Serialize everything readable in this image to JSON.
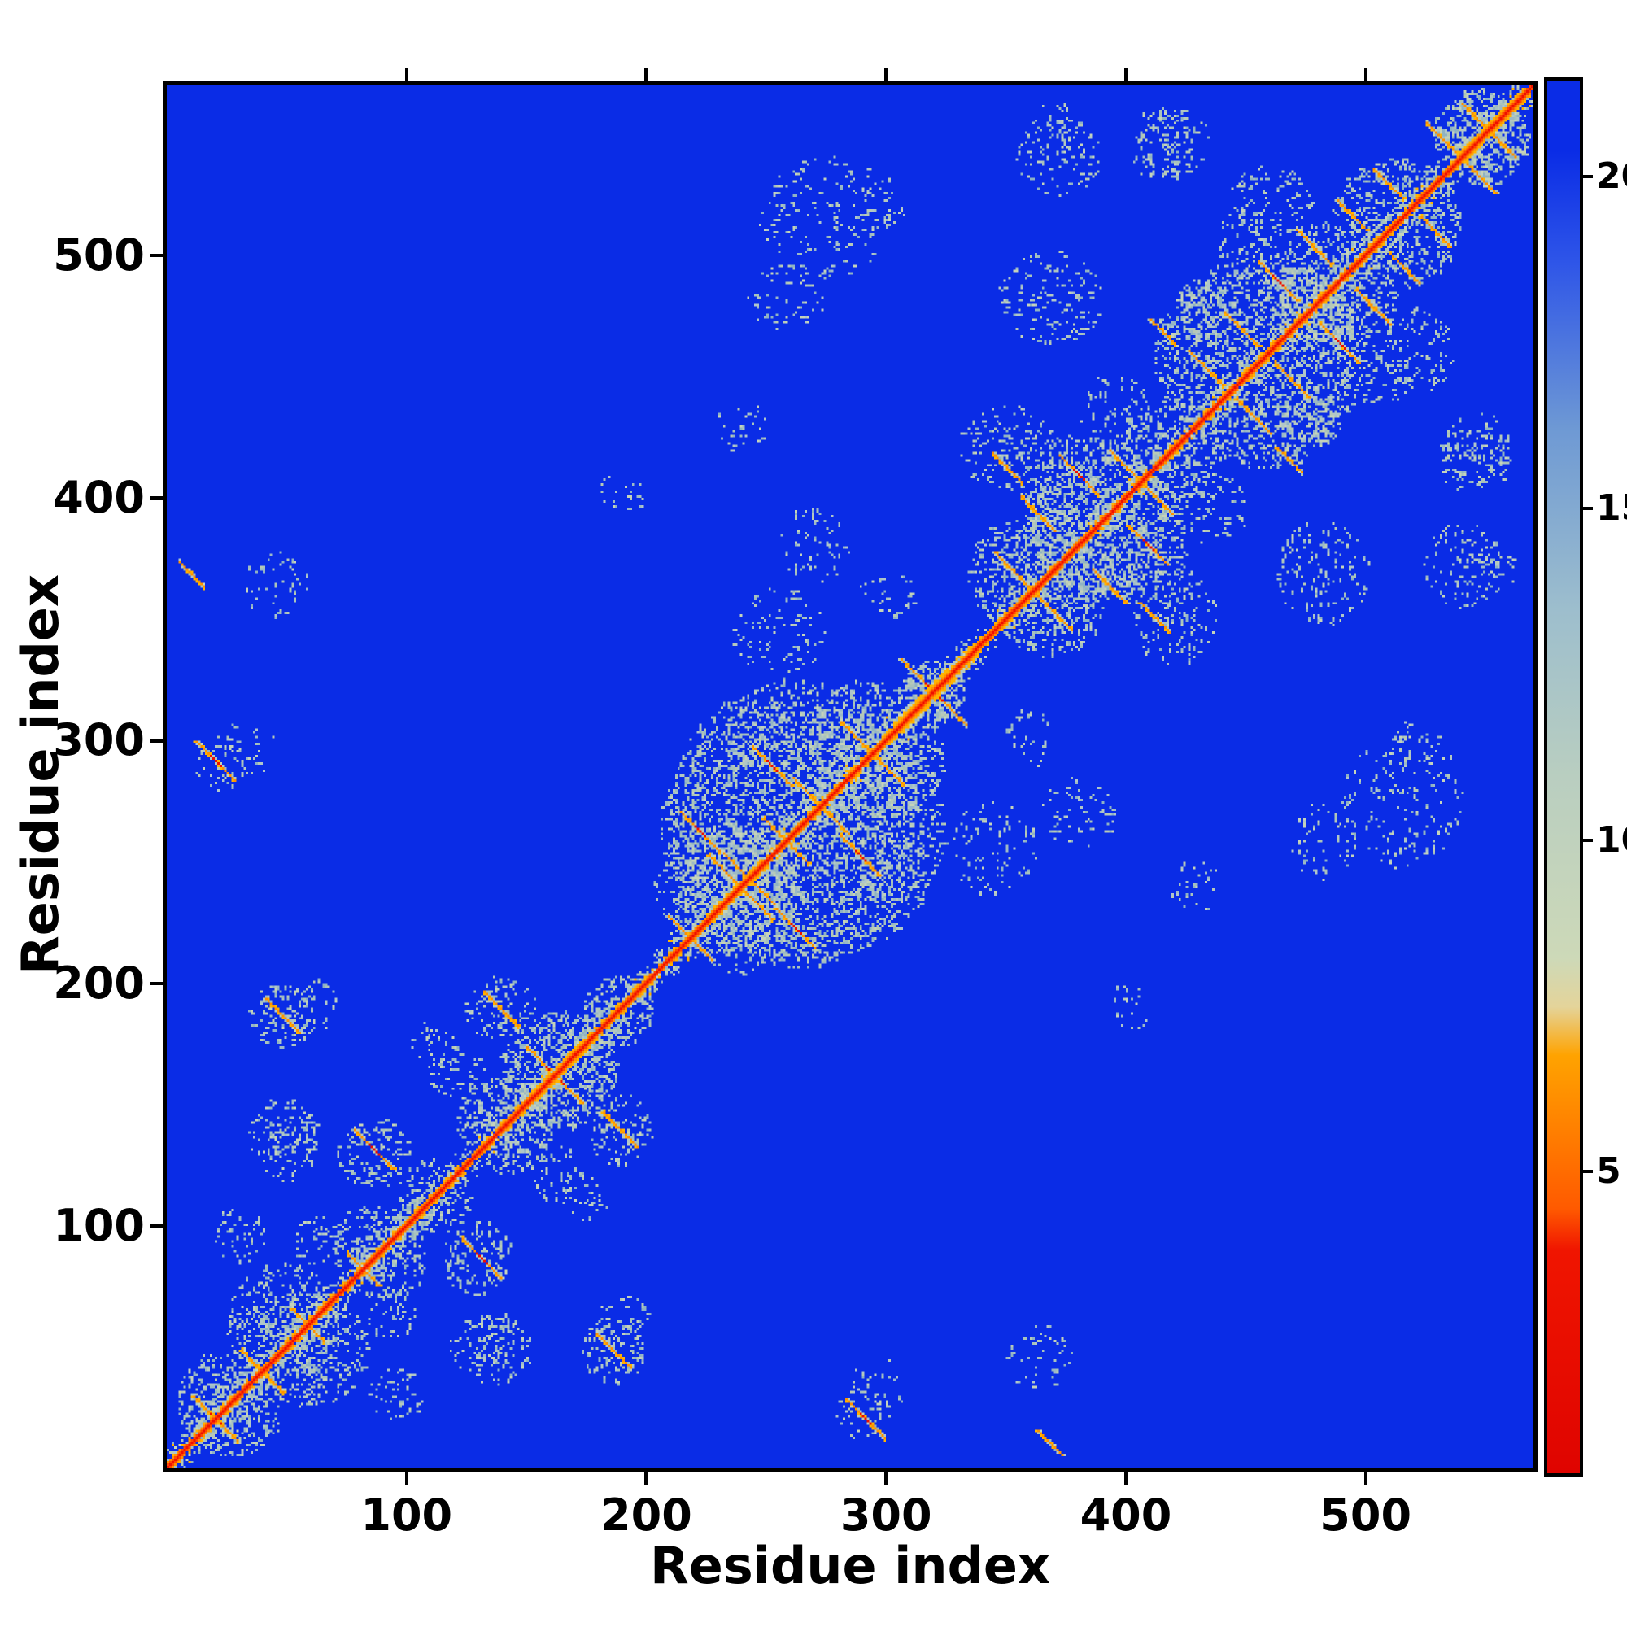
{
  "chart_data": {
    "type": "heatmap",
    "title": "",
    "xlabel": "Residue index",
    "ylabel": "Residue index",
    "n_residues": 570,
    "x_range": [
      1,
      570
    ],
    "y_range": [
      1,
      570
    ],
    "value_range": [
      0.5,
      21.5
    ],
    "x_ticks": [
      100,
      200,
      300,
      400,
      500
    ],
    "y_ticks": [
      100,
      200,
      300,
      400,
      500
    ],
    "colorbar_ticks": [
      5,
      10,
      15,
      20
    ],
    "legend_position": "right",
    "grid": false,
    "description": "Symmetric residue-residue distance map of a ~570-residue protein: red main diagonal (zero distance), orange anti-diagonal segments (antiparallel secondary-structure contacts), pale grey-green speckled clusters (long-range contact domains) on a blue background (large distances). Dense intra-domain blocks near residues 1-200, 205-335 and 335-570, with sparser inter-domain contact patches.",
    "colormap_stops": [
      {
        "pos": 0.0,
        "color": "#df0400"
      },
      {
        "pos": 0.16,
        "color": "#f01500"
      },
      {
        "pos": 0.19,
        "color": "#ff5a00"
      },
      {
        "pos": 0.3,
        "color": "#ffa300"
      },
      {
        "pos": 0.335,
        "color": "#e4d49a"
      },
      {
        "pos": 0.37,
        "color": "#cdd9b8"
      },
      {
        "pos": 0.5,
        "color": "#b9cec0"
      },
      {
        "pos": 0.62,
        "color": "#9dbecd"
      },
      {
        "pos": 0.75,
        "color": "#6e99d4"
      },
      {
        "pos": 0.87,
        "color": "#2e55e8"
      },
      {
        "pos": 0.95,
        "color": "#0a2ce6"
      },
      {
        "pos": 1.0,
        "color": "#0a2ce6"
      }
    ],
    "colors": {
      "background": "#0a2ce6",
      "red": "#ee1000",
      "red_orange": "#ff4500",
      "orange": "#ff9100",
      "orange_deep": "#ff6a00",
      "orange_light": "#ffb400",
      "speckle_palette": [
        "#b7c9b6",
        "#a9c3bb",
        "#9cb9c6",
        "#c5d3ba",
        "#8fb2c3",
        "#b0c6c9"
      ]
    },
    "features": {
      "diagonal_fuzz": [
        {
          "from": 0,
          "to": 118,
          "intensity": 0.5
        },
        {
          "from": 118,
          "to": 150,
          "intensity": 0.35
        },
        {
          "from": 150,
          "to": 205,
          "intensity": 0.45
        },
        {
          "from": 205,
          "to": 336,
          "intensity": 0.55
        },
        {
          "from": 336,
          "to": 346,
          "intensity": 0.15
        },
        {
          "from": 346,
          "to": 570,
          "intensity": 0.5
        }
      ],
      "diagonal_thick": [
        {
          "from": 96,
          "to": 112,
          "w": 2
        },
        {
          "from": 150,
          "to": 172,
          "w": 3
        },
        {
          "from": 303,
          "to": 334,
          "w": 4
        },
        {
          "from": 355,
          "to": 371,
          "w": 2
        },
        {
          "from": 450,
          "to": 462,
          "w": 2
        },
        {
          "from": 538,
          "to": 564,
          "w": 3
        }
      ],
      "speckle_clusters": [
        {
          "x": 28,
          "y": 22,
          "r": 20,
          "d": 0.5
        },
        {
          "x": 58,
          "y": 48,
          "r": 26,
          "d": 0.45
        },
        {
          "x": 86,
          "y": 92,
          "r": 18,
          "d": 0.4
        },
        {
          "x": 112,
          "y": 108,
          "r": 14,
          "d": 0.35
        },
        {
          "x": 140,
          "y": 143,
          "r": 20,
          "d": 0.45
        },
        {
          "x": 163,
          "y": 166,
          "r": 24,
          "d": 0.5
        },
        {
          "x": 188,
          "y": 190,
          "r": 15,
          "d": 0.4
        },
        {
          "x": 265,
          "y": 262,
          "r": 60,
          "d": 0.42
        },
        {
          "x": 232,
          "y": 238,
          "r": 30,
          "d": 0.35
        },
        {
          "x": 296,
          "y": 292,
          "r": 28,
          "d": 0.35
        },
        {
          "x": 318,
          "y": 320,
          "r": 14,
          "d": 0.55
        },
        {
          "x": 362,
          "y": 368,
          "r": 28,
          "d": 0.45
        },
        {
          "x": 392,
          "y": 388,
          "r": 32,
          "d": 0.45
        },
        {
          "x": 418,
          "y": 422,
          "r": 20,
          "d": 0.35
        },
        {
          "x": 455,
          "y": 458,
          "r": 44,
          "d": 0.45
        },
        {
          "x": 487,
          "y": 483,
          "r": 26,
          "d": 0.4
        },
        {
          "x": 512,
          "y": 516,
          "r": 26,
          "d": 0.4
        },
        {
          "x": 548,
          "y": 550,
          "r": 20,
          "d": 0.55
        },
        {
          "x": 48,
          "y": 138,
          "r": 15,
          "d": 0.35
        },
        {
          "x": 86,
          "y": 129,
          "r": 16,
          "d": 0.4
        },
        {
          "x": 48,
          "y": 186,
          "r": 15,
          "d": 0.4
        },
        {
          "x": 139,
          "y": 189,
          "r": 15,
          "d": 0.4
        },
        {
          "x": 120,
          "y": 163,
          "r": 12,
          "d": 0.3
        },
        {
          "x": 62,
          "y": 93,
          "r": 12,
          "d": 0.3
        },
        {
          "x": 32,
          "y": 296,
          "r": 14,
          "d": 0.15
        },
        {
          "x": 290,
          "y": 22,
          "r": 12,
          "d": 0.2
        },
        {
          "x": 365,
          "y": 45,
          "r": 16,
          "d": 0.15
        },
        {
          "x": 255,
          "y": 345,
          "r": 20,
          "d": 0.2
        },
        {
          "x": 250,
          "y": 300,
          "r": 16,
          "d": 0.3
        },
        {
          "x": 190,
          "y": 402,
          "r": 10,
          "d": 0.18
        },
        {
          "x": 240,
          "y": 428,
          "r": 12,
          "d": 0.18
        },
        {
          "x": 275,
          "y": 515,
          "r": 28,
          "d": 0.18
        },
        {
          "x": 258,
          "y": 482,
          "r": 16,
          "d": 0.2
        },
        {
          "x": 350,
          "y": 420,
          "r": 20,
          "d": 0.3
        },
        {
          "x": 368,
          "y": 482,
          "r": 22,
          "d": 0.28
        },
        {
          "x": 372,
          "y": 540,
          "r": 18,
          "d": 0.25
        },
        {
          "x": 420,
          "y": 545,
          "r": 16,
          "d": 0.25
        },
        {
          "x": 460,
          "y": 520,
          "r": 18,
          "d": 0.3
        },
        {
          "x": 545,
          "y": 415,
          "r": 16,
          "d": 0.28
        },
        {
          "x": 552,
          "y": 370,
          "r": 13,
          "d": 0.25
        },
        {
          "x": 520,
          "y": 298,
          "r": 11,
          "d": 0.18
        },
        {
          "x": 190,
          "y": 60,
          "r": 12,
          "d": 0.25
        },
        {
          "x": 132,
          "y": 50,
          "r": 14,
          "d": 0.28
        },
        {
          "x": 95,
          "y": 30,
          "r": 12,
          "d": 0.3
        },
        {
          "x": 175,
          "y": 110,
          "r": 10,
          "d": 0.22
        },
        {
          "x": 410,
          "y": 370,
          "r": 18,
          "d": 0.3
        },
        {
          "x": 435,
          "y": 395,
          "r": 16,
          "d": 0.3
        },
        {
          "x": 300,
          "y": 360,
          "r": 12,
          "d": 0.2
        },
        {
          "x": 380,
          "y": 270,
          "r": 16,
          "d": 0.2
        },
        {
          "x": 505,
          "y": 450,
          "r": 14,
          "d": 0.28
        },
        {
          "x": 478,
          "y": 430,
          "r": 12,
          "d": 0.28
        }
      ],
      "orange_segments": [
        {
          "x": 20,
          "y": 20,
          "l": 9
        },
        {
          "x": 42,
          "y": 37,
          "l": 6
        },
        {
          "x": 60,
          "y": 57,
          "l": 5
        },
        {
          "x": 83,
          "y": 80,
          "l": 5
        },
        {
          "x": 86,
          "y": 131,
          "l": 8
        },
        {
          "x": 48,
          "y": 186,
          "l": 7
        },
        {
          "x": 139,
          "y": 189,
          "l": 7
        },
        {
          "x": 160,
          "y": 163,
          "l": 10
        },
        {
          "x": 291,
          "y": 20,
          "l": 8
        },
        {
          "x": 10,
          "y": 368,
          "l": 5
        },
        {
          "x": 222,
          "y": 262,
          "l": 8
        },
        {
          "x": 238,
          "y": 247,
          "l": 6
        },
        {
          "x": 214,
          "y": 222,
          "l": 5
        },
        {
          "x": 252,
          "y": 289,
          "l": 8
        },
        {
          "x": 268,
          "y": 277,
          "l": 7
        },
        {
          "x": 288,
          "y": 300,
          "l": 7
        },
        {
          "x": 246,
          "y": 232,
          "l": 6
        },
        {
          "x": 262,
          "y": 254,
          "l": 5
        },
        {
          "x": 318,
          "y": 321,
          "l": 12
        },
        {
          "x": 352,
          "y": 370,
          "l": 7
        },
        {
          "x": 363,
          "y": 393,
          "l": 7
        },
        {
          "x": 380,
          "y": 409,
          "l": 8
        },
        {
          "x": 350,
          "y": 412,
          "l": 6
        },
        {
          "x": 399,
          "y": 413,
          "l": 6
        },
        {
          "x": 433,
          "y": 453,
          "l": 7
        },
        {
          "x": 448,
          "y": 469,
          "l": 7
        },
        {
          "x": 463,
          "y": 489,
          "l": 8
        },
        {
          "x": 478,
          "y": 503,
          "l": 7
        },
        {
          "x": 494,
          "y": 516,
          "l": 6
        },
        {
          "x": 509,
          "y": 529,
          "l": 6
        },
        {
          "x": 532,
          "y": 547,
          "l": 7
        },
        {
          "x": 545,
          "y": 557,
          "l": 5
        },
        {
          "x": 415,
          "y": 468,
          "l": 5
        }
      ]
    }
  }
}
